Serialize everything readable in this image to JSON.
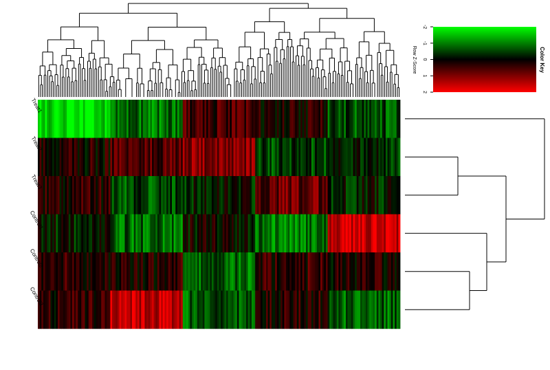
{
  "chart_data": {
    "type": "heatmap",
    "rows": [
      "Treat1",
      "Treat2",
      "Treat3",
      "Control1",
      "Control2",
      "Control3"
    ],
    "n_columns": 200,
    "color_scale": {
      "low": "#00ff00",
      "mid": "#000000",
      "high": "#ff0000"
    },
    "color_key": {
      "title": "Color Key",
      "axis_label": "Row Z-Score",
      "ticks": [
        "-2",
        "-1",
        "0",
        "1",
        "2"
      ],
      "range": [
        -2,
        2
      ]
    },
    "row_dendrogram": true,
    "column_dendrogram": true,
    "column_patterns": [
      [
        -1.8,
        0.2,
        0.3,
        -0.2,
        0.3,
        0.3
      ],
      [
        -0.3,
        1.4,
        0.6,
        -0.3,
        -0.4,
        -0.9
      ],
      [
        0.5,
        1.1,
        -0.2,
        0.0,
        -0.8,
        -0.7
      ],
      [
        0.9,
        -0.4,
        -0.3,
        0.3,
        0.5,
        -1.2
      ],
      [
        0.2,
        -0.5,
        0.8,
        -0.9,
        0.4,
        0.3
      ],
      [
        -0.3,
        0.2,
        -1.5,
        0.4,
        0.6,
        0.5
      ],
      [
        -0.6,
        -0.3,
        -0.2,
        1.6,
        0.2,
        -0.7
      ],
      [
        -0.9,
        0.6,
        -0.6,
        -0.8,
        0.3,
        1.5
      ],
      [
        0.3,
        0.0,
        0.2,
        -1.4,
        1.1,
        0.1
      ]
    ],
    "column_blocks": [
      {
        "columns": [
          0,
          40
        ],
        "pattern": 0
      },
      {
        "columns": [
          40,
          80
        ],
        "pattern": 7
      },
      {
        "columns": [
          80,
          120
        ],
        "pattern": 2
      },
      {
        "columns": [
          120,
          160
        ],
        "pattern": 4
      },
      {
        "columns": [
          160,
          200
        ],
        "pattern": 6
      }
    ]
  }
}
